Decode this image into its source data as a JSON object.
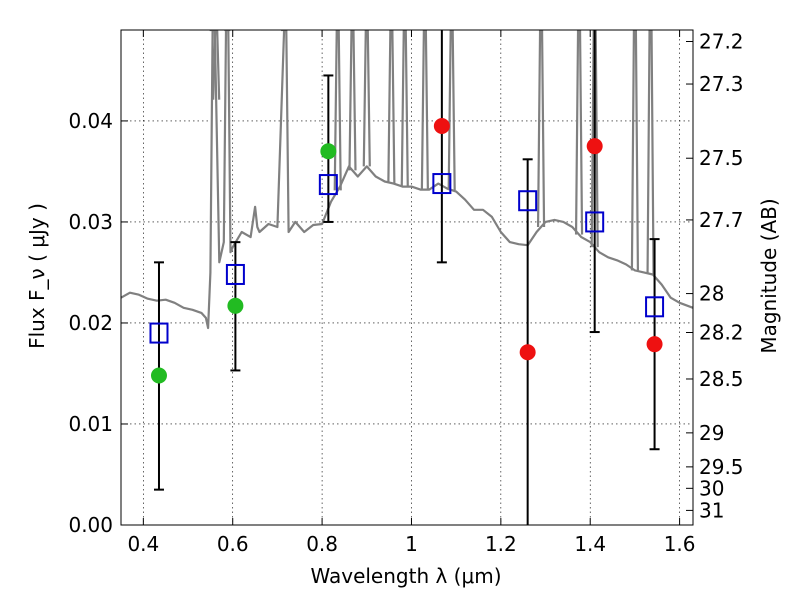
{
  "chart_data": {
    "type": "scatter",
    "xlabel": "Wavelength  λ (μm)",
    "ylabel": "Flux  F_ν  ( μJy )",
    "y2label": "Magnitude (AB)",
    "xlim": [
      0.35,
      1.63
    ],
    "ylim": [
      0.0,
      0.049
    ],
    "grid": true,
    "x_ticks": [
      {
        "value": 0.4,
        "label": "0.4"
      },
      {
        "value": 0.6,
        "label": "0.6"
      },
      {
        "value": 0.8,
        "label": "0.8"
      },
      {
        "value": 1.0,
        "label": "1"
      },
      {
        "value": 1.2,
        "label": "1.2"
      },
      {
        "value": 1.4,
        "label": "1.4"
      },
      {
        "value": 1.6,
        "label": "1.6"
      }
    ],
    "y_ticks": [
      {
        "value": 0.0,
        "label": "0.00"
      },
      {
        "value": 0.01,
        "label": "0.01"
      },
      {
        "value": 0.02,
        "label": "0.02"
      },
      {
        "value": 0.03,
        "label": "0.03"
      },
      {
        "value": 0.04,
        "label": "0.04"
      }
    ],
    "mag_ticks": [
      {
        "value": 27.2,
        "label": "27.2"
      },
      {
        "value": 27.3,
        "label": "27.3"
      },
      {
        "value": 27.5,
        "label": "27.5"
      },
      {
        "value": 27.7,
        "label": "27.7"
      },
      {
        "value": 28.0,
        "label": "28"
      },
      {
        "value": 28.2,
        "label": "28.2"
      },
      {
        "value": 28.5,
        "label": "28.5"
      },
      {
        "value": 29.0,
        "label": "29"
      },
      {
        "value": 29.5,
        "label": "29.5"
      },
      {
        "value": 30.0,
        "label": "30"
      },
      {
        "value": 31.0,
        "label": "31"
      }
    ],
    "series": [
      {
        "marker": "circle",
        "color": "#22bb22",
        "points": [
          {
            "x": 0.435,
            "y": 0.0148
          },
          {
            "x": 0.606,
            "y": 0.0217
          },
          {
            "x": 0.814,
            "y": 0.037
          }
        ]
      },
      {
        "marker": "circle",
        "color": "#ee1111",
        "points": [
          {
            "x": 1.068,
            "y": 0.0395
          },
          {
            "x": 1.26,
            "y": 0.0171
          },
          {
            "x": 1.41,
            "y": 0.0375
          },
          {
            "x": 1.544,
            "y": 0.0179
          }
        ]
      },
      {
        "marker": "open-square",
        "color": "#0000cc",
        "points": [
          {
            "x": 0.435,
            "y": 0.019
          },
          {
            "x": 0.606,
            "y": 0.0248
          },
          {
            "x": 0.814,
            "y": 0.0337
          },
          {
            "x": 1.068,
            "y": 0.0338
          },
          {
            "x": 1.26,
            "y": 0.0321
          },
          {
            "x": 1.41,
            "y": 0.03
          },
          {
            "x": 1.544,
            "y": 0.0216
          }
        ]
      }
    ],
    "error_bars": [
      {
        "x": 0.435,
        "low": 0.0035,
        "high": 0.026
      },
      {
        "x": 0.606,
        "low": 0.0153,
        "high": 0.028
      },
      {
        "x": 0.814,
        "low": 0.03,
        "high": 0.0445
      },
      {
        "x": 1.068,
        "low": 0.026,
        "high": 0.049
      },
      {
        "x": 1.26,
        "low": 0.0,
        "high": 0.0362
      },
      {
        "x": 1.41,
        "low": 0.0191,
        "high": 0.049
      },
      {
        "x": 1.544,
        "low": 0.0075,
        "high": 0.0283
      }
    ],
    "model_spectrum": {
      "color": "#808080",
      "x": [
        0.35,
        0.37,
        0.39,
        0.41,
        0.43,
        0.45,
        0.47,
        0.49,
        0.51,
        0.53,
        0.54,
        0.545,
        0.55,
        0.555,
        0.56,
        0.57,
        0.58,
        0.585,
        0.59,
        0.595,
        0.6,
        0.62,
        0.64,
        0.65,
        0.655,
        0.66,
        0.68,
        0.7,
        0.715,
        0.72,
        0.725,
        0.74,
        0.76,
        0.78,
        0.8,
        0.82,
        0.84,
        0.86,
        0.88,
        0.9,
        0.92,
        0.94,
        0.96,
        0.98,
        1.0,
        1.02,
        1.04,
        1.06,
        1.08,
        1.1,
        1.12,
        1.14,
        1.16,
        1.18,
        1.2,
        1.22,
        1.24,
        1.26,
        1.28,
        1.3,
        1.32,
        1.34,
        1.36,
        1.38,
        1.4,
        1.42,
        1.44,
        1.46,
        1.48,
        1.5,
        1.52,
        1.54,
        1.56,
        1.58,
        1.6,
        1.63
      ],
      "y": [
        0.0225,
        0.023,
        0.0228,
        0.0224,
        0.0222,
        0.0223,
        0.022,
        0.0215,
        0.0213,
        0.021,
        0.0205,
        0.0195,
        0.025,
        0.049,
        0.049,
        0.026,
        0.028,
        0.049,
        0.049,
        0.027,
        0.0275,
        0.029,
        0.0285,
        0.0315,
        0.0295,
        0.029,
        0.0298,
        0.0295,
        0.049,
        0.049,
        0.029,
        0.03,
        0.029,
        0.0297,
        0.0298,
        0.032,
        0.0335,
        0.0355,
        0.0345,
        0.0355,
        0.0345,
        0.034,
        0.0338,
        0.0335,
        0.0335,
        0.0332,
        0.0332,
        0.0338,
        0.0333,
        0.033,
        0.0322,
        0.0312,
        0.0312,
        0.0305,
        0.029,
        0.028,
        0.0278,
        0.0277,
        0.029,
        0.03,
        0.0302,
        0.03,
        0.0295,
        0.0285,
        0.028,
        0.027,
        0.0265,
        0.0262,
        0.0258,
        0.0252,
        0.025,
        0.0248,
        0.0238,
        0.0225,
        0.022,
        0.0215
      ],
      "emission_spikes": [
        0.555,
        0.563,
        0.588,
        0.715,
        0.835,
        0.868,
        0.9,
        0.955,
        0.985,
        1.03,
        1.09,
        1.29,
        1.375,
        1.41,
        1.5,
        1.535
      ]
    }
  }
}
